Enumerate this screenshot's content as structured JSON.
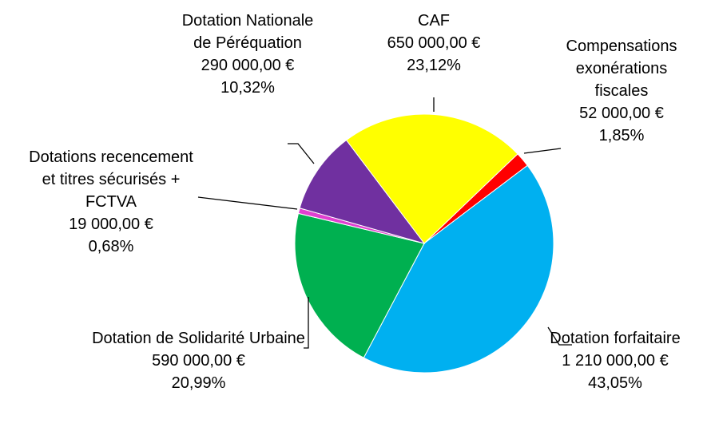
{
  "chart_data": {
    "type": "pie",
    "categories": [
      "CAF",
      "Compensations exonérations fiscales",
      "Dotation forfaitaire",
      "Dotation de Solidarité Urbaine",
      "Dotations recencement et titres sécurisés + FCTVA",
      "Dotation Nationale de Péréquation"
    ],
    "values": [
      650000,
      52000,
      1210000,
      590000,
      19000,
      290000
    ],
    "value_labels": [
      "650 000,00 €",
      "52 000,00 €",
      "1 210 000,00 €",
      "590 000,00 €",
      "19 000,00 €",
      "290 000,00 €"
    ],
    "percentages": [
      23.12,
      1.85,
      43.05,
      20.99,
      0.68,
      10.32
    ],
    "percentage_labels": [
      "23,12%",
      "1,85%",
      "43,05%",
      "20,99%",
      "0,68%",
      "10,32%"
    ],
    "colors": [
      "#ffff00",
      "#ff0000",
      "#00b0f0",
      "#00b050",
      "#e040d0",
      "#7030a0"
    ]
  }
}
